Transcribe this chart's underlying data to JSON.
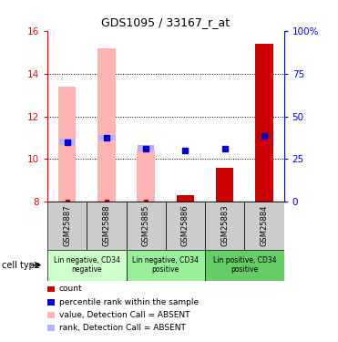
{
  "title": "GDS1095 / 33167_r_at",
  "samples": [
    "GSM25887",
    "GSM25888",
    "GSM25885",
    "GSM25886",
    "GSM25883",
    "GSM25884"
  ],
  "ylim_left": [
    8,
    16
  ],
  "ylim_right": [
    0,
    100
  ],
  "yticks_left": [
    8,
    10,
    12,
    14,
    16
  ],
  "yticks_right": [
    0,
    25,
    50,
    75,
    100
  ],
  "ytick_labels_right": [
    "0",
    "25",
    "50",
    "75",
    "100%"
  ],
  "bars_absent_value": [
    13.4,
    15.2,
    10.4,
    null,
    null,
    null
  ],
  "bars_absent_rank": [
    10.8,
    11.0,
    10.5,
    null,
    null,
    null
  ],
  "bars_present_value": [
    null,
    null,
    null,
    8.3,
    9.6,
    15.4
  ],
  "count_y": [
    8.0,
    8.0,
    8.0,
    8.2,
    8.0,
    8.0
  ],
  "rank_y": [
    10.8,
    11.0,
    10.5,
    10.4,
    10.5,
    11.1
  ],
  "absent_bar_color": "#ffb3b3",
  "present_bar_color": "#cc0000",
  "rank_absent_color": "#b3b3ff",
  "rank_present_color": "#0000cc",
  "count_color": "#cc0000",
  "sample_bg_color": "#cccccc",
  "cell_colors": [
    "#ccffcc",
    "#99ee99",
    "#66cc66"
  ],
  "cell_groups": [
    [
      0,
      2,
      "Lin negative, CD34\nnegative"
    ],
    [
      2,
      4,
      "Lin negative, CD34\npositive"
    ],
    [
      4,
      6,
      "Lin positive, CD34\npositive"
    ]
  ],
  "legend_items": [
    {
      "color": "#cc0000",
      "label": "count"
    },
    {
      "color": "#0000cc",
      "label": "percentile rank within the sample"
    },
    {
      "color": "#ffb3b3",
      "label": "value, Detection Call = ABSENT"
    },
    {
      "color": "#b3b3ff",
      "label": "rank, Detection Call = ABSENT"
    }
  ]
}
